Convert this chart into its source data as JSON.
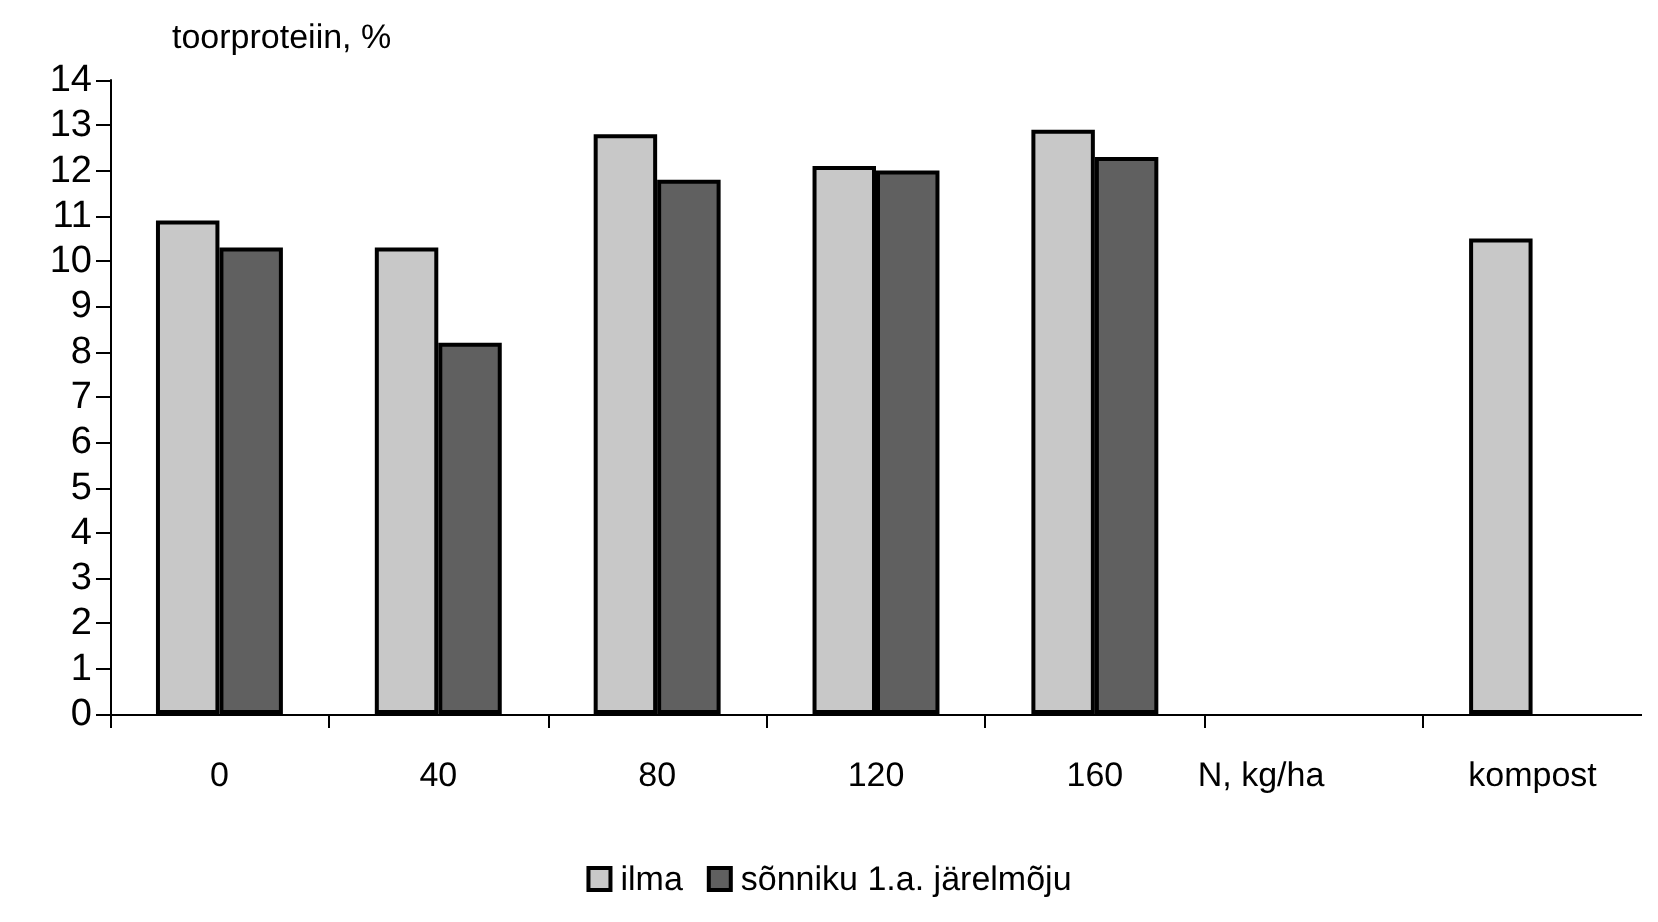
{
  "chart_data": {
    "type": "bar",
    "ylabel": "toorproteiin, %",
    "xlabel": "N, kg/ha",
    "categories": [
      "0",
      "40",
      "80",
      "120",
      "160",
      null,
      "kompost"
    ],
    "series": [
      {
        "name": "ilma",
        "color": "#c8c8c8",
        "values": [
          10.9,
          10.3,
          12.8,
          12.1,
          12.9,
          null,
          10.5
        ]
      },
      {
        "name": "sõnniku 1.a. järelmõju",
        "color": "#606060",
        "values": [
          10.3,
          8.2,
          11.8,
          12.0,
          12.3,
          null,
          null
        ]
      }
    ],
    "ylim": [
      0,
      14
    ],
    "yticks": [
      0,
      1,
      2,
      3,
      4,
      5,
      6,
      7,
      8,
      9,
      10,
      11,
      12,
      13,
      14
    ],
    "grid": false,
    "legend": "bottom"
  }
}
